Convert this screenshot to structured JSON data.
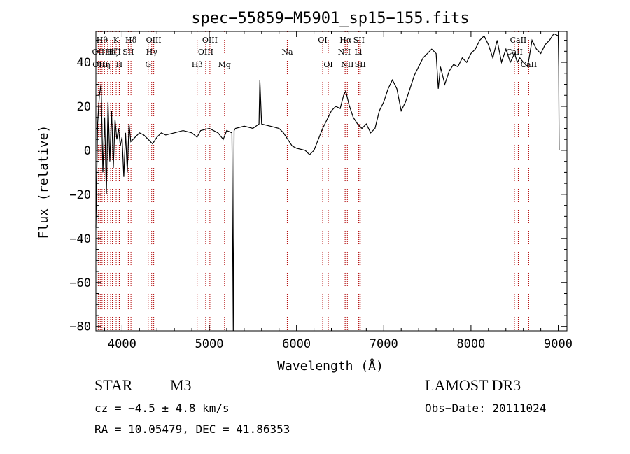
{
  "chart_data": {
    "type": "line",
    "title": "spec−55859−M5901_sp15−155.fits",
    "xlabel": "Wavelength (Å)",
    "ylabel": "Flux (relative)",
    "xlim": [
      3700,
      9100
    ],
    "ylim": [
      -82,
      54
    ],
    "x_ticks": [
      4000,
      5000,
      6000,
      7000,
      8000,
      9000
    ],
    "x_tick_labels": [
      "4000",
      "5000",
      "6000",
      "7000",
      "8000",
      "9000"
    ],
    "y_ticks": [
      -80,
      -60,
      -40,
      -20,
      0,
      20,
      40
    ],
    "y_tick_labels": [
      "−80",
      "−60",
      "−40",
      "−20",
      "0",
      "20",
      "40"
    ],
    "series": [
      {
        "name": "flux",
        "x": [
          3700,
          3720,
          3740,
          3760,
          3780,
          3800,
          3820,
          3840,
          3860,
          3880,
          3900,
          3920,
          3940,
          3960,
          3980,
          4000,
          4020,
          4040,
          4060,
          4080,
          4100,
          4150,
          4200,
          4250,
          4300,
          4350,
          4400,
          4450,
          4500,
          4600,
          4700,
          4800,
          4860,
          4900,
          5000,
          5100,
          5160,
          5200,
          5260,
          5275,
          5285,
          5300,
          5400,
          5500,
          5570,
          5580,
          5600,
          5700,
          5800,
          5850,
          5900,
          5950,
          6000,
          6100,
          6150,
          6200,
          6250,
          6300,
          6350,
          6400,
          6450,
          6500,
          6540,
          6565,
          6600,
          6650,
          6700,
          6750,
          6800,
          6850,
          6900,
          6950,
          7000,
          7050,
          7100,
          7150,
          7200,
          7250,
          7300,
          7350,
          7400,
          7450,
          7500,
          7550,
          7600,
          7625,
          7650,
          7700,
          7750,
          7800,
          7850,
          7900,
          7950,
          8000,
          8050,
          8100,
          8150,
          8200,
          8250,
          8300,
          8350,
          8400,
          8450,
          8500,
          8530,
          8560,
          8600,
          8650,
          8700,
          8750,
          8800,
          8850,
          8900,
          8950,
          9000,
          9005,
          9010
        ],
        "y": [
          -35,
          12,
          25,
          30,
          -10,
          15,
          -20,
          22,
          -5,
          18,
          -8,
          14,
          5,
          10,
          2,
          6,
          -12,
          8,
          -10,
          12,
          4,
          6,
          8,
          7,
          5,
          3,
          6,
          8,
          7,
          8,
          9,
          8,
          6,
          9,
          10,
          8,
          5,
          9,
          8,
          -82,
          9,
          10,
          11,
          10,
          12,
          32,
          12,
          11,
          10,
          8,
          5,
          2,
          1,
          0,
          -2,
          0,
          5,
          10,
          14,
          18,
          20,
          19,
          25,
          27,
          21,
          15,
          12,
          10,
          12,
          8,
          10,
          18,
          22,
          28,
          32,
          28,
          18,
          22,
          28,
          34,
          38,
          42,
          44,
          46,
          44,
          28,
          38,
          30,
          36,
          39,
          38,
          42,
          40,
          44,
          46,
          50,
          52,
          48,
          42,
          50,
          40,
          46,
          40,
          44,
          40,
          42,
          40,
          38,
          50,
          46,
          44,
          48,
          50,
          53,
          52,
          38,
          0
        ]
      }
    ],
    "lines": [
      {
        "wavelength": 3727,
        "label": "OII",
        "row": 1
      },
      {
        "wavelength": 3750,
        "label": "OIII",
        "row": 2
      },
      {
        "wavelength": 3771,
        "label": "Hθ",
        "row": 0
      },
      {
        "wavelength": 3799,
        "label": "Hη",
        "row": 2
      },
      {
        "wavelength": 3835,
        "label": "",
        "row": 0
      },
      {
        "wavelength": 3869,
        "label": "He",
        "row": 1
      },
      {
        "wavelength": 3889,
        "label": "Hζ",
        "row": 1
      },
      {
        "wavelength": 3933,
        "label": "K",
        "row": 0
      },
      {
        "wavelength": 3968,
        "label": "H",
        "row": 2
      },
      {
        "wavelength": 3970,
        "label": "I",
        "row": 1
      },
      {
        "wavelength": 4072,
        "label": "SII",
        "row": 1
      },
      {
        "wavelength": 4102,
        "label": "Hδ",
        "row": 0
      },
      {
        "wavelength": 4300,
        "label": "G",
        "row": 2
      },
      {
        "wavelength": 4340,
        "label": "Hγ",
        "row": 1
      },
      {
        "wavelength": 4363,
        "label": "OIII",
        "row": 0
      },
      {
        "wavelength": 4861,
        "label": "Hβ",
        "row": 2
      },
      {
        "wavelength": 4959,
        "label": "OIII",
        "row": 1
      },
      {
        "wavelength": 5007,
        "label": "OIII",
        "row": 0
      },
      {
        "wavelength": 5175,
        "label": "Mg",
        "row": 2
      },
      {
        "wavelength": 5894,
        "label": "Na",
        "row": 1
      },
      {
        "wavelength": 6300,
        "label": "OI",
        "row": 0
      },
      {
        "wavelength": 6364,
        "label": "OI",
        "row": 2
      },
      {
        "wavelength": 6548,
        "label": "NII",
        "row": 1
      },
      {
        "wavelength": 6563,
        "label": "Hα",
        "row": 0
      },
      {
        "wavelength": 6583,
        "label": "NII",
        "row": 2
      },
      {
        "wavelength": 6708,
        "label": "Li",
        "row": 1
      },
      {
        "wavelength": 6716,
        "label": "SII",
        "row": 0
      },
      {
        "wavelength": 6731,
        "label": "SII",
        "row": 2
      },
      {
        "wavelength": 8498,
        "label": "CaII",
        "row": 1
      },
      {
        "wavelength": 8542,
        "label": "CaII",
        "row": 0
      },
      {
        "wavelength": 8662,
        "label": "CaII",
        "row": 2
      }
    ]
  },
  "info": {
    "object_class": "STAR",
    "subclass": "M3",
    "survey": "LAMOST  DR3",
    "cz": "cz = −4.5 ± 4.8 km/s",
    "obs_date": "Obs−Date: 20111024",
    "radec": "RA =  10.05479, DEC =  41.86353"
  }
}
